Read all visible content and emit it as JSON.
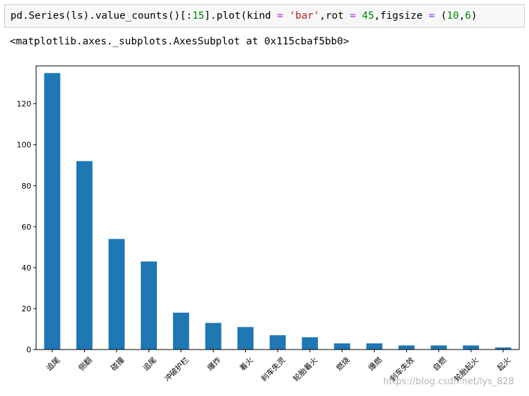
{
  "cell": {
    "code_parts": [
      {
        "t": "pd.Series(ls).value_counts()[:",
        "c": ""
      },
      {
        "t": "15",
        "c": "num"
      },
      {
        "t": "].plot(kind ",
        "c": ""
      },
      {
        "t": "=",
        "c": "op"
      },
      {
        "t": " ",
        "c": ""
      },
      {
        "t": "'bar'",
        "c": "str"
      },
      {
        "t": ",rot ",
        "c": ""
      },
      {
        "t": "=",
        "c": "op"
      },
      {
        "t": " ",
        "c": ""
      },
      {
        "t": "45",
        "c": "num"
      },
      {
        "t": ",figsize ",
        "c": ""
      },
      {
        "t": "=",
        "c": "op"
      },
      {
        "t": " (",
        "c": ""
      },
      {
        "t": "10",
        "c": "num"
      },
      {
        "t": ",",
        "c": ""
      },
      {
        "t": "6",
        "c": "num"
      },
      {
        "t": ")",
        "c": ""
      }
    ],
    "output": "<matplotlib.axes._subplots.AxesSubplot at 0x115cbaf5bb0>"
  },
  "watermark": "https://blog.csdn.net/lys_828",
  "chart_data": {
    "type": "bar",
    "categories": [
      "追尾",
      "侧翻",
      "碰撞",
      "追尾",
      "冲破护栏",
      "爆炸",
      "着火",
      "刹车失灵",
      "轮胎着火",
      "燃烧",
      "爆燃",
      "刹车失效",
      "自燃",
      "轮胎起火",
      "起火"
    ],
    "values": [
      135,
      92,
      54,
      43,
      18,
      13,
      11,
      7,
      6,
      3,
      3,
      2,
      2,
      2,
      1
    ],
    "ylim": [
      0,
      138.5
    ],
    "yticks": [
      0,
      20,
      40,
      60,
      80,
      100,
      120
    ],
    "bar_color": "#1f77b4",
    "xtick_rotation": 45,
    "grid": false,
    "title": "",
    "xlabel": "",
    "ylabel": ""
  }
}
